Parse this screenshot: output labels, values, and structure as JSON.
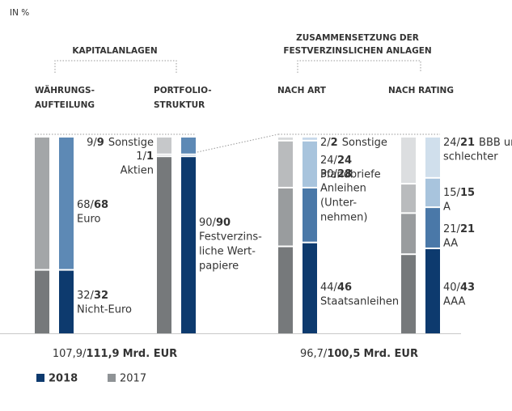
{
  "chart_data": {
    "type": "stacked_bar",
    "ylabel": "IN %",
    "separator": "/",
    "series": [
      {
        "name": "2018",
        "color": "#0d3a6e"
      },
      {
        "name": "2017",
        "color": "#8f9396"
      }
    ],
    "sections": [
      {
        "title": [
          "KAPITALANLAGEN"
        ],
        "totals": {
          "values": [
            107.9,
            111.9
          ],
          "value_labels": [
            "107,9",
            "111,9"
          ],
          "unit": "Mrd. EUR"
        },
        "groups": [
          {
            "title": [
              "WÄHRUNGS-",
              "AUFTEILUNG"
            ],
            "segments": [
              {
                "name": [
                  "Nicht-Euro"
                ],
                "values": [
                  32,
                  32
                ],
                "colors": [
                  "#76797b",
                  "#0d3a6e"
                ]
              },
              {
                "name": [
                  "Euro"
                ],
                "values": [
                  68,
                  68
                ],
                "colors": [
                  "#a3a6a8",
                  "#5d89b5"
                ]
              }
            ]
          },
          {
            "title": [
              "PORTFOLIO-",
              "STRUKTUR"
            ],
            "segments": [
              {
                "name": [
                  "Festverzins-",
                  "liche Wert-",
                  "papiere"
                ],
                "values": [
                  90,
                  90
                ],
                "colors": [
                  "#76797b",
                  "#0d3a6e"
                ]
              },
              {
                "name": [
                  "Aktien"
                ],
                "values": [
                  1,
                  1
                ],
                "colors": [
                  "#a3a6a8",
                  "#4a78a8"
                ]
              },
              {
                "name": [
                  "Sonstige"
                ],
                "values": [
                  9,
                  9
                ],
                "colors": [
                  "#c6c8ca",
                  "#5d89b5"
                ]
              }
            ]
          }
        ]
      },
      {
        "title": [
          "ZUSAMMENSETZUNG DER",
          "FESTVERZINSLICHEN ANLAGEN"
        ],
        "totals": {
          "values": [
            96.7,
            100.5
          ],
          "value_labels": [
            "96,7",
            "100,5"
          ],
          "unit": "Mrd. EUR"
        },
        "groups": [
          {
            "title": [
              "NACH ART"
            ],
            "segments": [
              {
                "name": [
                  "Staatsanleihen"
                ],
                "values": [
                  44,
                  46
                ],
                "colors": [
                  "#76797b",
                  "#0d3a6e"
                ]
              },
              {
                "name": [
                  "Anleihen",
                  "(Unter-",
                  "nehmen)"
                ],
                "values": [
                  30,
                  28
                ],
                "colors": [
                  "#999c9e",
                  "#4a78a8"
                ]
              },
              {
                "name": [
                  "Pfandbriefe"
                ],
                "values": [
                  24,
                  24
                ],
                "colors": [
                  "#b9bbbd",
                  "#a8c4dd"
                ]
              },
              {
                "name": [
                  "Sonstige"
                ],
                "values": [
                  2,
                  2
                ],
                "colors": [
                  "#d8dadb",
                  "#c8d9ea"
                ]
              }
            ]
          },
          {
            "title": [
              "NACH RATING"
            ],
            "segments": [
              {
                "name": [
                  "AAA"
                ],
                "values": [
                  40,
                  43
                ],
                "colors": [
                  "#76797b",
                  "#0d3a6e"
                ]
              },
              {
                "name": [
                  "AA"
                ],
                "values": [
                  21,
                  21
                ],
                "colors": [
                  "#999c9e",
                  "#4a78a8"
                ]
              },
              {
                "name": [
                  "A"
                ],
                "values": [
                  15,
                  15
                ],
                "colors": [
                  "#b9bbbd",
                  "#a8c4dd"
                ]
              },
              {
                "name": [
                  "BBB und",
                  "schlechter"
                ],
                "values": [
                  24,
                  21
                ],
                "colors": [
                  "#dcdee0",
                  "#d0dfec"
                ]
              }
            ]
          }
        ]
      }
    ]
  }
}
